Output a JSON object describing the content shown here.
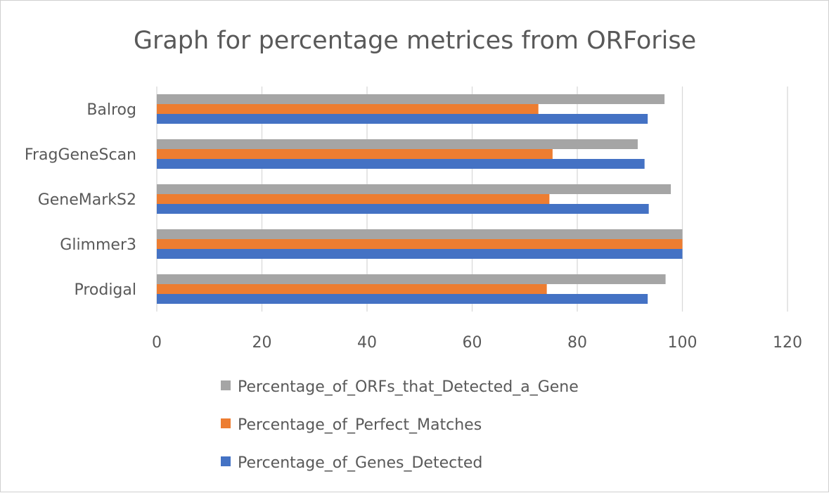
{
  "chart_data": {
    "type": "bar",
    "orientation": "horizontal",
    "title": "Graph for percentage metrices from ORForise",
    "categories": [
      "Balrog",
      "FragGeneScan",
      "GeneMarkS2",
      "Glimmer3",
      "Prodigal"
    ],
    "series": [
      {
        "name": "Percentage_of_ORFs_that_Detected_a_Gene",
        "color": "#a5a5a5",
        "values": [
          96.6,
          91.5,
          97.8,
          100,
          96.8
        ]
      },
      {
        "name": "Percentage_of_Perfect_Matches",
        "color": "#ed7d31",
        "values": [
          72.6,
          75.3,
          74.7,
          100,
          74.2
        ]
      },
      {
        "name": "Percentage_of_Genes_Detected",
        "color": "#4472c4",
        "values": [
          93.4,
          92.8,
          93.6,
          100,
          93.4
        ]
      }
    ],
    "xlim": [
      0,
      120
    ],
    "xticks": [
      "0",
      "20",
      "40",
      "60",
      "80",
      "100",
      "120"
    ],
    "grid": true,
    "legend_position": "bottom"
  }
}
